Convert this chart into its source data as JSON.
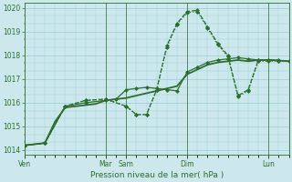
{
  "background_color": "#cce8ec",
  "grid_color": "#99ccd4",
  "line_color": "#2d6e2d",
  "xlabel": "Pression niveau de la mer( hPa )",
  "ylim": [
    1013.8,
    1020.2
  ],
  "yticks": [
    1014,
    1015,
    1016,
    1017,
    1018,
    1019,
    1020
  ],
  "xtick_labels": [
    "Ven",
    "Mar",
    "Sam",
    "Dim",
    "Lun"
  ],
  "xtick_positions": [
    0,
    24,
    30,
    48,
    72
  ],
  "vline_positions": [
    24,
    30,
    48,
    72
  ],
  "xlim": [
    0,
    78
  ],
  "series": [
    {
      "x": [
        0,
        3,
        6,
        9,
        12,
        15,
        18,
        21,
        24,
        27,
        30,
        33,
        36,
        39,
        42,
        45,
        48,
        51,
        54,
        57,
        60,
        63,
        66,
        69,
        72,
        75,
        78
      ],
      "y": [
        1014.2,
        1014.25,
        1014.3,
        1015.2,
        1015.8,
        1015.85,
        1015.9,
        1015.95,
        1016.1,
        1016.15,
        1016.2,
        1016.3,
        1016.4,
        1016.5,
        1016.6,
        1016.7,
        1017.2,
        1017.4,
        1017.6,
        1017.7,
        1017.75,
        1017.8,
        1017.75,
        1017.8,
        1017.8,
        1017.78,
        1017.75
      ],
      "style": "-",
      "marker": null,
      "markersize": 0,
      "linewidth": 1.3
    },
    {
      "x": [
        0,
        6,
        12,
        18,
        24,
        27,
        30,
        33,
        36,
        39,
        42,
        45,
        48,
        51,
        54,
        57,
        60,
        63,
        66,
        69,
        72,
        75,
        78
      ],
      "y": [
        1014.2,
        1014.3,
        1015.85,
        1016.0,
        1016.1,
        1016.15,
        1016.55,
        1016.6,
        1016.65,
        1016.6,
        1016.55,
        1016.5,
        1017.3,
        1017.5,
        1017.7,
        1017.8,
        1017.85,
        1017.9,
        1017.85,
        1017.8,
        1017.8,
        1017.78,
        1017.75
      ],
      "style": "-",
      "marker": "D",
      "markersize": 2.0,
      "linewidth": 0.9
    },
    {
      "x": [
        0,
        6,
        12,
        18,
        24,
        30,
        33,
        36,
        39,
        42,
        45,
        48,
        51,
        54,
        57,
        60,
        63,
        66,
        69,
        72,
        75
      ],
      "y": [
        1014.2,
        1014.3,
        1015.85,
        1016.1,
        1016.15,
        1015.85,
        1015.5,
        1015.5,
        1016.55,
        1018.4,
        1019.35,
        1019.85,
        1019.9,
        1019.2,
        1018.5,
        1018.0,
        1016.3,
        1016.55,
        1017.8,
        1017.8,
        1017.8
      ],
      "style": "--",
      "marker": "D",
      "markersize": 2.0,
      "linewidth": 0.9
    },
    {
      "x": [
        0,
        6,
        12,
        18,
        24,
        30,
        33,
        36,
        39,
        42,
        45,
        48,
        51,
        54,
        57,
        60,
        63,
        66,
        69,
        72,
        75
      ],
      "y": [
        1014.2,
        1014.3,
        1015.85,
        1016.1,
        1016.15,
        1015.85,
        1015.5,
        1015.5,
        1016.55,
        1018.35,
        1019.3,
        1019.8,
        1019.85,
        1019.15,
        1018.45,
        1017.95,
        1016.25,
        1016.5,
        1017.75,
        1017.75,
        1017.75
      ],
      "style": ":",
      "marker": "D",
      "markersize": 2.0,
      "linewidth": 0.9
    }
  ],
  "figsize": [
    3.2,
    2.0
  ],
  "dpi": 100
}
